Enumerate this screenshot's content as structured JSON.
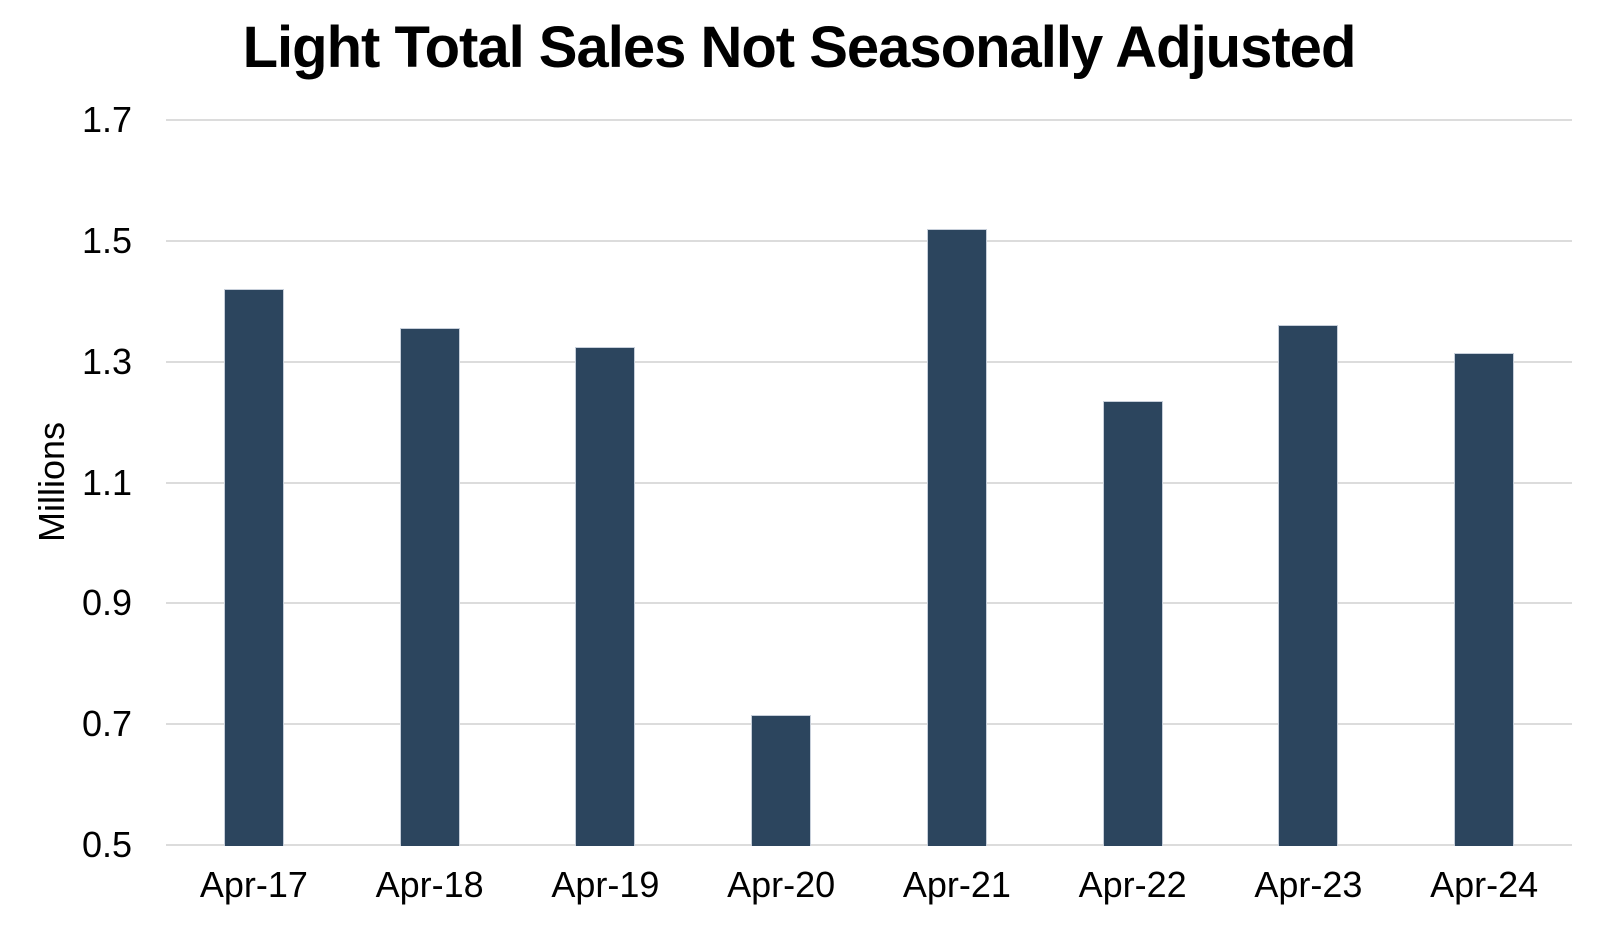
{
  "chart_data": {
    "type": "bar",
    "title": "Light Total Sales Not Seasonally Adjusted",
    "ylabel": "Millions",
    "xlabel": "",
    "categories": [
      "Apr-17",
      "Apr-18",
      "Apr-19",
      "Apr-20",
      "Apr-21",
      "Apr-22",
      "Apr-23",
      "Apr-24"
    ],
    "values": [
      1.42,
      1.355,
      1.325,
      0.715,
      1.52,
      1.235,
      1.36,
      1.315
    ],
    "ylim": [
      0.5,
      1.7
    ],
    "ytick_interval": 0.2,
    "ytick_labels": [
      "0.5",
      "0.7",
      "0.9",
      "1.1",
      "1.3",
      "1.5",
      "1.7"
    ],
    "grid": "horizontal",
    "legend": "none",
    "colors": {
      "bar_fill": "#2C455E",
      "bar_border": "#C7CFDA",
      "gridline": "#DCDCDC",
      "text": "#000000",
      "background": "#FFFFFF"
    }
  }
}
